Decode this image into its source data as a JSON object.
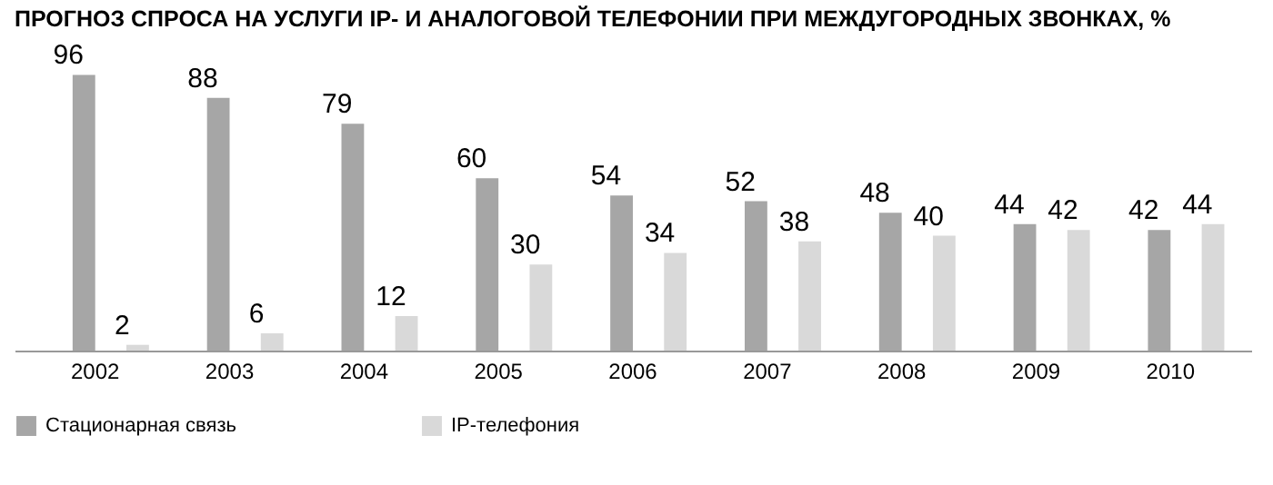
{
  "chart_data": {
    "type": "bar",
    "title": "ПРОГНОЗ СПРОСА НА УСЛУГИ IP- И АНАЛОГОВОЙ ТЕЛЕФОНИИ ПРИ МЕЖДУГОРОДНЫХ ЗВОНКАХ, %",
    "categories": [
      "2002",
      "2003",
      "2004",
      "2005",
      "2006",
      "2007",
      "2008",
      "2009",
      "2010"
    ],
    "series": [
      {
        "name": "Стационарная связь",
        "color": "#a6a6a6",
        "values": [
          96,
          88,
          79,
          60,
          54,
          52,
          48,
          44,
          42
        ]
      },
      {
        "name": "IP-телефония",
        "color": "#d9d9d9",
        "values": [
          2,
          6,
          12,
          30,
          34,
          38,
          40,
          42,
          44
        ]
      }
    ],
    "data_labels": true,
    "legend": "bottom left",
    "grid": false
  }
}
